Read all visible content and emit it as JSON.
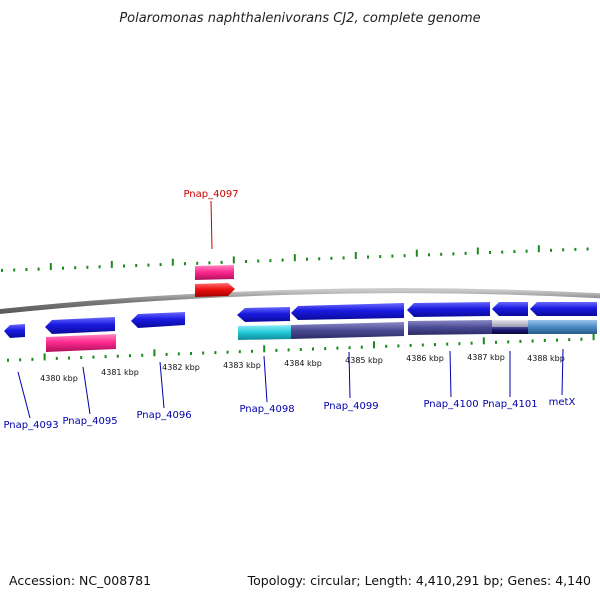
{
  "title": "Polaromonas naphthalenivorans CJ2, complete genome",
  "footer": {
    "accession": "Accession: NC_008781",
    "summary": "Topology: circular; Length: 4,410,291 bp; Genes: 4,140"
  },
  "ruler_labels": [
    "4380 kbp",
    "4381 kbp",
    "4382 kbp",
    "4383 kbp",
    "4384 kbp",
    "4385 kbp",
    "4386 kbp",
    "4387 kbp",
    "4388 kbp"
  ],
  "gene_labels": [
    {
      "name": "Pnap_4097",
      "color": "#cc0000"
    },
    {
      "name": "Pnap_4093",
      "color": "#0000aa"
    },
    {
      "name": "Pnap_4095",
      "color": "#0000aa"
    },
    {
      "name": "Pnap_4096",
      "color": "#0000aa"
    },
    {
      "name": "Pnap_4098",
      "color": "#0000aa"
    },
    {
      "name": "Pnap_4099",
      "color": "#0000aa"
    },
    {
      "name": "Pnap_4100",
      "color": "#0000aa"
    },
    {
      "name": "Pnap_4101",
      "color": "#0000aa"
    },
    {
      "name": "metX",
      "color": "#0000aa"
    }
  ],
  "colors": {
    "cds": "#1a1adc",
    "rna": "#ff2a90",
    "trna": "#ee1111",
    "domain_cyan": "#22c8d8",
    "domain_purple": "#4a4a94",
    "domain_steel": "#4a8ac4",
    "backbone": "#8a8a8a",
    "ticks": "#1a8a1a"
  }
}
